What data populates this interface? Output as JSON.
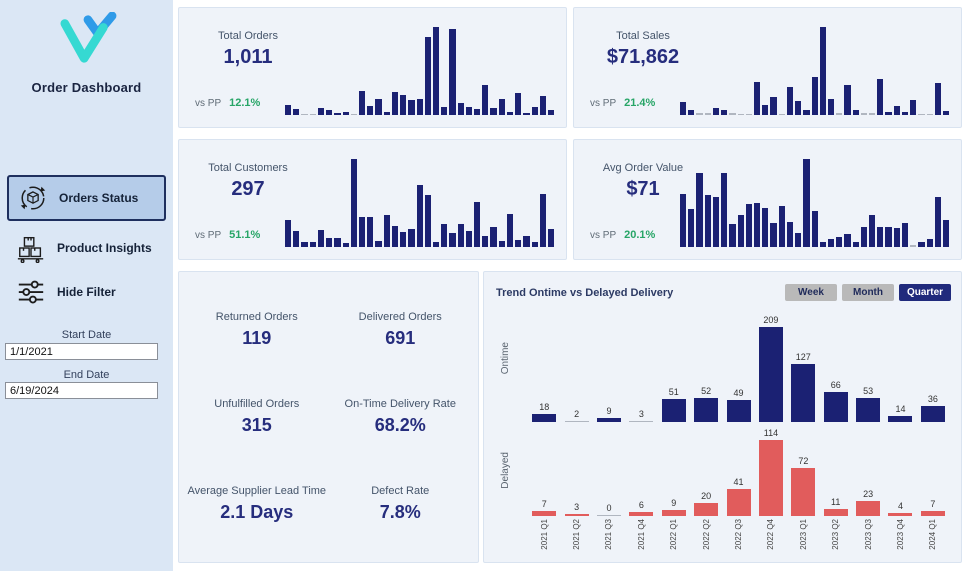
{
  "sidebar": {
    "title": "Order Dashboard",
    "logo_icon": "v-checkmark-logo",
    "nav": [
      {
        "label": "Orders Status",
        "icon": "orders-status-icon",
        "active": true
      },
      {
        "label": "Product Insights",
        "icon": "product-insights-icon",
        "active": false
      },
      {
        "label": "Hide Filter",
        "icon": "hide-filter-icon",
        "active": false
      }
    ],
    "filters": {
      "start_label": "Start Date",
      "start_value": "1/1/2021",
      "end_label": "End Date",
      "end_value": "6/19/2024"
    }
  },
  "kpi_cards": [
    {
      "title": "Total Orders",
      "value": "1,011",
      "vs_label": "vs PP",
      "vs_value": "12.1%",
      "chart_data": {
        "type": "bar",
        "values": [
          10,
          6,
          1,
          1,
          7,
          5,
          2,
          3,
          1,
          24,
          9,
          16,
          3,
          23,
          20,
          15,
          16,
          78,
          88,
          8,
          86,
          12,
          8,
          6,
          30,
          7,
          16,
          3,
          22,
          2,
          8,
          19,
          5
        ]
      }
    },
    {
      "title": "Total Sales",
      "value": "$71,862",
      "vs_label": "vs PP",
      "vs_value": "21.4%",
      "chart_data": {
        "type": "bar",
        "values": [
          14,
          6,
          2,
          2,
          8,
          6,
          2,
          1,
          1,
          36,
          11,
          20,
          1,
          31,
          15,
          5,
          42,
          97,
          18,
          2,
          33,
          6,
          2,
          2,
          40,
          3,
          10,
          3,
          17,
          1,
          1,
          35,
          4
        ]
      }
    },
    {
      "title": "Total Customers",
      "value": "297",
      "vs_label": "vs PP",
      "vs_value": "51.1%",
      "chart_data": {
        "type": "bar",
        "values": [
          30,
          18,
          6,
          6,
          19,
          10,
          10,
          4,
          97,
          33,
          33,
          7,
          35,
          23,
          17,
          20,
          68,
          57,
          5,
          25,
          15,
          25,
          18,
          50,
          12,
          22,
          7,
          36,
          8,
          12,
          5,
          58,
          20
        ]
      }
    },
    {
      "title": "Avg Order Value",
      "value": "$71",
      "vs_label": "vs PP",
      "vs_value": "20.1%",
      "chart_data": {
        "type": "bar",
        "values": [
          58,
          42,
          82,
          57,
          55,
          82,
          25,
          35,
          47,
          49,
          43,
          27,
          45,
          28,
          15,
          97,
          40,
          6,
          9,
          11,
          14,
          5,
          22,
          35,
          22,
          22,
          21,
          27,
          2,
          5,
          9,
          55,
          30
        ]
      }
    }
  ],
  "metrics_card": {
    "items": [
      {
        "label": "Returned Orders",
        "value": "119"
      },
      {
        "label": "Delivered Orders",
        "value": "691"
      },
      {
        "label": "Unfulfilled Orders",
        "value": "315"
      },
      {
        "label": "On-Time Delivery Rate",
        "value": "68.2%"
      },
      {
        "label": "Average Supplier Lead Time",
        "value": "2.1 Days"
      },
      {
        "label": "Defect Rate",
        "value": "7.8%"
      }
    ]
  },
  "trend": {
    "title": "Trend Ontime vs Delayed Delivery",
    "buttons": [
      {
        "label": "Week",
        "active": false
      },
      {
        "label": "Month",
        "active": false
      },
      {
        "label": "Quarter",
        "active": true
      }
    ],
    "chart_data": {
      "type": "bar",
      "categories": [
        "2021 Q1",
        "2021 Q2",
        "2021 Q3",
        "2021 Q4",
        "2022 Q1",
        "2022 Q2",
        "2022 Q3",
        "2022 Q4",
        "2023 Q1",
        "2023 Q2",
        "2023 Q3",
        "2023 Q4",
        "2024 Q1"
      ],
      "series": [
        {
          "name": "Ontime",
          "values": [
            18,
            2,
            9,
            3,
            51,
            52,
            49,
            209,
            127,
            66,
            53,
            14,
            36
          ]
        },
        {
          "name": "Delayed",
          "values": [
            7,
            3,
            0,
            6,
            9,
            20,
            41,
            114,
            72,
            11,
            23,
            4,
            7
          ]
        }
      ],
      "grid": false,
      "data_labels": true,
      "axis_labels": [
        "Ontime",
        "Delayed"
      ]
    }
  },
  "colors": {
    "bar_navy": "#1b2173",
    "bar_red": "#e15c5c",
    "green": "#27a567",
    "value_navy": "#262d7d",
    "sidebar_bg": "#dbe7f5",
    "card_bg": "#eff3f9",
    "active_nav_bg": "#b5cce9",
    "button_gray": "#b9b9b9",
    "button_active_navy": "#202a7c",
    "tiny_bar_gray": "#b0b6c0",
    "logo_blue": "#2f9be8",
    "logo_teal": "#35d9d2"
  }
}
